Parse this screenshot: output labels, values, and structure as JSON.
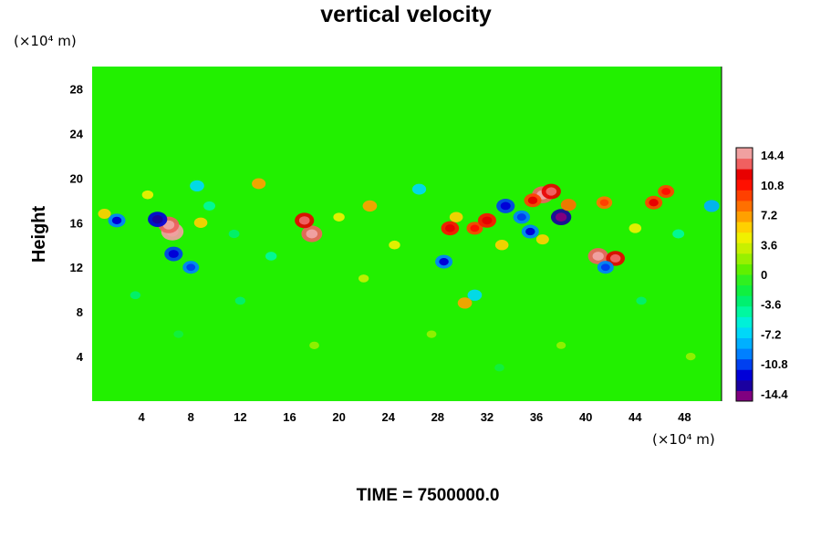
{
  "chart_data": {
    "type": "heatmap",
    "title": "vertical velocity",
    "ylabel": "Height",
    "x_unit": "(×10⁴ m)",
    "y_unit": "(×10⁴ m)",
    "xlim": [
      0,
      51
    ],
    "ylim": [
      0,
      30
    ],
    "x_ticks": [
      {
        "value": 4,
        "label": "4"
      },
      {
        "value": 8,
        "label": "8"
      },
      {
        "value": 12,
        "label": "12"
      },
      {
        "value": 16,
        "label": "16"
      },
      {
        "value": 20,
        "label": "20"
      },
      {
        "value": 24,
        "label": "24"
      },
      {
        "value": 28,
        "label": "28"
      },
      {
        "value": 32,
        "label": "32"
      },
      {
        "value": 36,
        "label": "36"
      },
      {
        "value": 40,
        "label": "40"
      },
      {
        "value": 44,
        "label": "44"
      },
      {
        "value": 48,
        "label": "48"
      }
    ],
    "y_ticks": [
      {
        "value": 4,
        "label": "4"
      },
      {
        "value": 8,
        "label": "8"
      },
      {
        "value": 12,
        "label": "12"
      },
      {
        "value": 16,
        "label": "16"
      },
      {
        "value": 20,
        "label": "20"
      },
      {
        "value": 24,
        "label": "24"
      },
      {
        "value": 28,
        "label": "28"
      }
    ],
    "colorbar": {
      "min": -15.3,
      "max": 15.3,
      "labels": [
        {
          "value": 14.4,
          "label": "14.4"
        },
        {
          "value": 10.8,
          "label": "10.8"
        },
        {
          "value": 7.2,
          "label": "7.2"
        },
        {
          "value": 3.6,
          "label": "3.6"
        },
        {
          "value": 0,
          "label": "0"
        },
        {
          "value": -3.6,
          "label": "-3.6"
        },
        {
          "value": -7.2,
          "label": "-7.2"
        },
        {
          "value": -10.8,
          "label": "-10.8"
        },
        {
          "value": -14.4,
          "label": "-14.4"
        }
      ],
      "colors": [
        "#800080",
        "#1a00a0",
        "#0000d8",
        "#0040f0",
        "#0080ff",
        "#00b0ff",
        "#00d8f8",
        "#00f0d8",
        "#00f8a0",
        "#00f070",
        "#10f040",
        "#30f020",
        "#60f000",
        "#98f000",
        "#c8f000",
        "#f0f000",
        "#ffd000",
        "#ffa000",
        "#ff7000",
        "#ff4000",
        "#ff1000",
        "#e80000",
        "#f06060",
        "#f0a0a0"
      ]
    },
    "time_label": "TIME = 7500000.0",
    "cells": [
      {
        "x": 6.5,
        "y": 15.2,
        "v": 15.0
      },
      {
        "x": 6.2,
        "y": 15.8,
        "v": 13.5
      },
      {
        "x": 5.3,
        "y": 16.3,
        "v": -12.0
      },
      {
        "x": 6.6,
        "y": 13.2,
        "v": -11.0
      },
      {
        "x": 8.0,
        "y": 12.0,
        "v": -9.0
      },
      {
        "x": 2.0,
        "y": 16.2,
        "v": -10.0
      },
      {
        "x": 1.0,
        "y": 16.8,
        "v": 5.5
      },
      {
        "x": 8.8,
        "y": 16.0,
        "v": 6.0
      },
      {
        "x": 8.5,
        "y": 19.3,
        "v": -7.0
      },
      {
        "x": 4.5,
        "y": 18.5,
        "v": 4.0
      },
      {
        "x": 9.5,
        "y": 17.5,
        "v": -4.5
      },
      {
        "x": 13.5,
        "y": 19.5,
        "v": 6.5
      },
      {
        "x": 17.8,
        "y": 15.0,
        "v": 13.5
      },
      {
        "x": 17.2,
        "y": 16.2,
        "v": 12.0
      },
      {
        "x": 22.5,
        "y": 17.5,
        "v": 7.0
      },
      {
        "x": 20.0,
        "y": 16.5,
        "v": 4.0
      },
      {
        "x": 26.5,
        "y": 19.0,
        "v": -6.5
      },
      {
        "x": 29.0,
        "y": 15.5,
        "v": 10.5
      },
      {
        "x": 28.5,
        "y": 12.5,
        "v": -10.0
      },
      {
        "x": 29.5,
        "y": 16.5,
        "v": 6.0
      },
      {
        "x": 31.0,
        "y": 15.5,
        "v": 9.0
      },
      {
        "x": 32.0,
        "y": 16.2,
        "v": 11.0
      },
      {
        "x": 33.5,
        "y": 17.5,
        "v": -11.0
      },
      {
        "x": 34.8,
        "y": 16.5,
        "v": -9.5
      },
      {
        "x": 35.5,
        "y": 15.2,
        "v": -10.0
      },
      {
        "x": 36.5,
        "y": 18.5,
        "v": 14.0
      },
      {
        "x": 37.2,
        "y": 18.8,
        "v": 12.0
      },
      {
        "x": 35.7,
        "y": 18.0,
        "v": 10.0
      },
      {
        "x": 38.0,
        "y": 16.5,
        "v": -13.0
      },
      {
        "x": 38.6,
        "y": 17.6,
        "v": 8.0
      },
      {
        "x": 41.5,
        "y": 17.8,
        "v": 8.5
      },
      {
        "x": 41.0,
        "y": 13.0,
        "v": 13.0
      },
      {
        "x": 42.4,
        "y": 12.8,
        "v": 11.5
      },
      {
        "x": 41.6,
        "y": 12.0,
        "v": -9.0
      },
      {
        "x": 45.5,
        "y": 17.8,
        "v": 10.0
      },
      {
        "x": 46.5,
        "y": 18.8,
        "v": 9.0
      },
      {
        "x": 50.2,
        "y": 17.5,
        "v": -8.0
      },
      {
        "x": 31.0,
        "y": 9.5,
        "v": -7.0
      },
      {
        "x": 30.2,
        "y": 8.8,
        "v": 7.0
      },
      {
        "x": 36.5,
        "y": 14.5,
        "v": 5.5
      },
      {
        "x": 33.2,
        "y": 14.0,
        "v": 6.0
      },
      {
        "x": 14.5,
        "y": 13.0,
        "v": -4.0
      },
      {
        "x": 11.5,
        "y": 15.0,
        "v": -3.5
      },
      {
        "x": 24.5,
        "y": 14.0,
        "v": 4.0
      },
      {
        "x": 47.5,
        "y": 15.0,
        "v": -4.5
      },
      {
        "x": 44.0,
        "y": 15.5,
        "v": 5.0
      },
      {
        "x": 3.5,
        "y": 9.5,
        "v": -3.0
      },
      {
        "x": 12.0,
        "y": 9.0,
        "v": -3.0
      },
      {
        "x": 18.0,
        "y": 5.0,
        "v": 2.5
      },
      {
        "x": 27.5,
        "y": 6.0,
        "v": 2.5
      },
      {
        "x": 33.0,
        "y": 3.0,
        "v": -2.5
      },
      {
        "x": 38.0,
        "y": 5.0,
        "v": 2.0
      },
      {
        "x": 44.5,
        "y": 9.0,
        "v": -3.0
      },
      {
        "x": 48.5,
        "y": 4.0,
        "v": 2.5
      },
      {
        "x": 22.0,
        "y": 11.0,
        "v": 3.0
      },
      {
        "x": 7.0,
        "y": 6.0,
        "v": -2.5
      }
    ]
  }
}
